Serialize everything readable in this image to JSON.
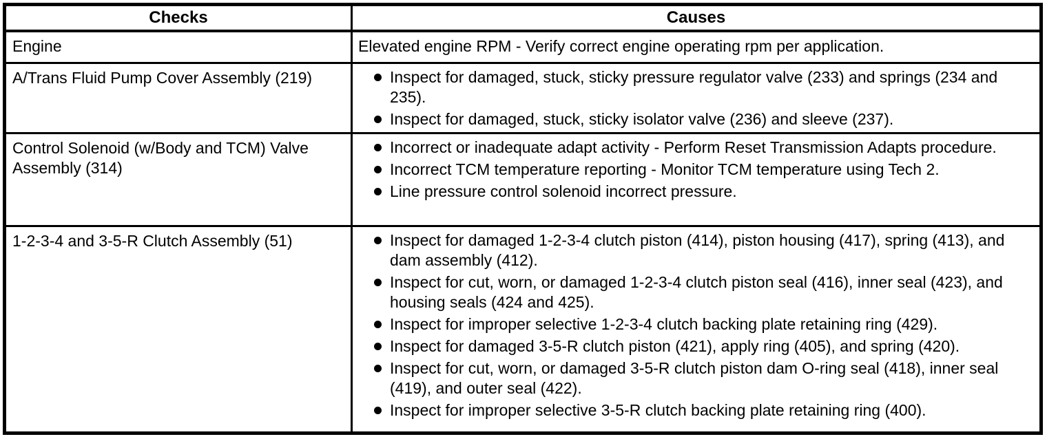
{
  "table": {
    "columns": [
      "Checks",
      "Causes"
    ],
    "rows": [
      {
        "check": "Engine",
        "cause_text": "Elevated engine RPM - Verify correct engine operating rpm per application."
      },
      {
        "check": "A/Trans Fluid Pump Cover Assembly (219)",
        "causes": [
          "Inspect for damaged, stuck, sticky pressure regulator valve (233) and springs (234 and 235).",
          "Inspect for damaged, stuck, sticky isolator valve (236) and sleeve (237)."
        ]
      },
      {
        "check": "Control Solenoid (w/Body and TCM) Valve Assembly (314)",
        "causes": [
          "Incorrect or inadequate adapt activity - Perform Reset Transmission Adapts procedure.",
          "Incorrect TCM temperature reporting - Monitor TCM temperature using Tech 2.",
          "Line pressure control solenoid incorrect pressure."
        ]
      },
      {
        "check": "1-2-3-4 and 3-5-R Clutch Assembly (51)",
        "causes": [
          "Inspect for damaged 1-2-3-4 clutch piston (414), piston housing (417), spring (413), and dam assembly (412).",
          "Inspect for cut, worn, or damaged 1-2-3-4 clutch piston seal (416), inner seal (423), and housing seals (424 and 425).",
          "Inspect for improper selective 1-2-3-4 clutch backing plate retaining ring (429).",
          "Inspect for damaged 3-5-R clutch piston (421), apply ring (405), and spring (420).",
          "Inspect for cut, worn, or damaged 3-5-R clutch piston dam O-ring seal (418), inner seal (419), and outer seal (422).",
          "Inspect for improper selective 3-5-R clutch backing plate retaining ring (400)."
        ]
      }
    ]
  },
  "colors": {
    "border": "#000000",
    "text": "#000000",
    "background": "#ffffff",
    "bullet": "#000000"
  }
}
